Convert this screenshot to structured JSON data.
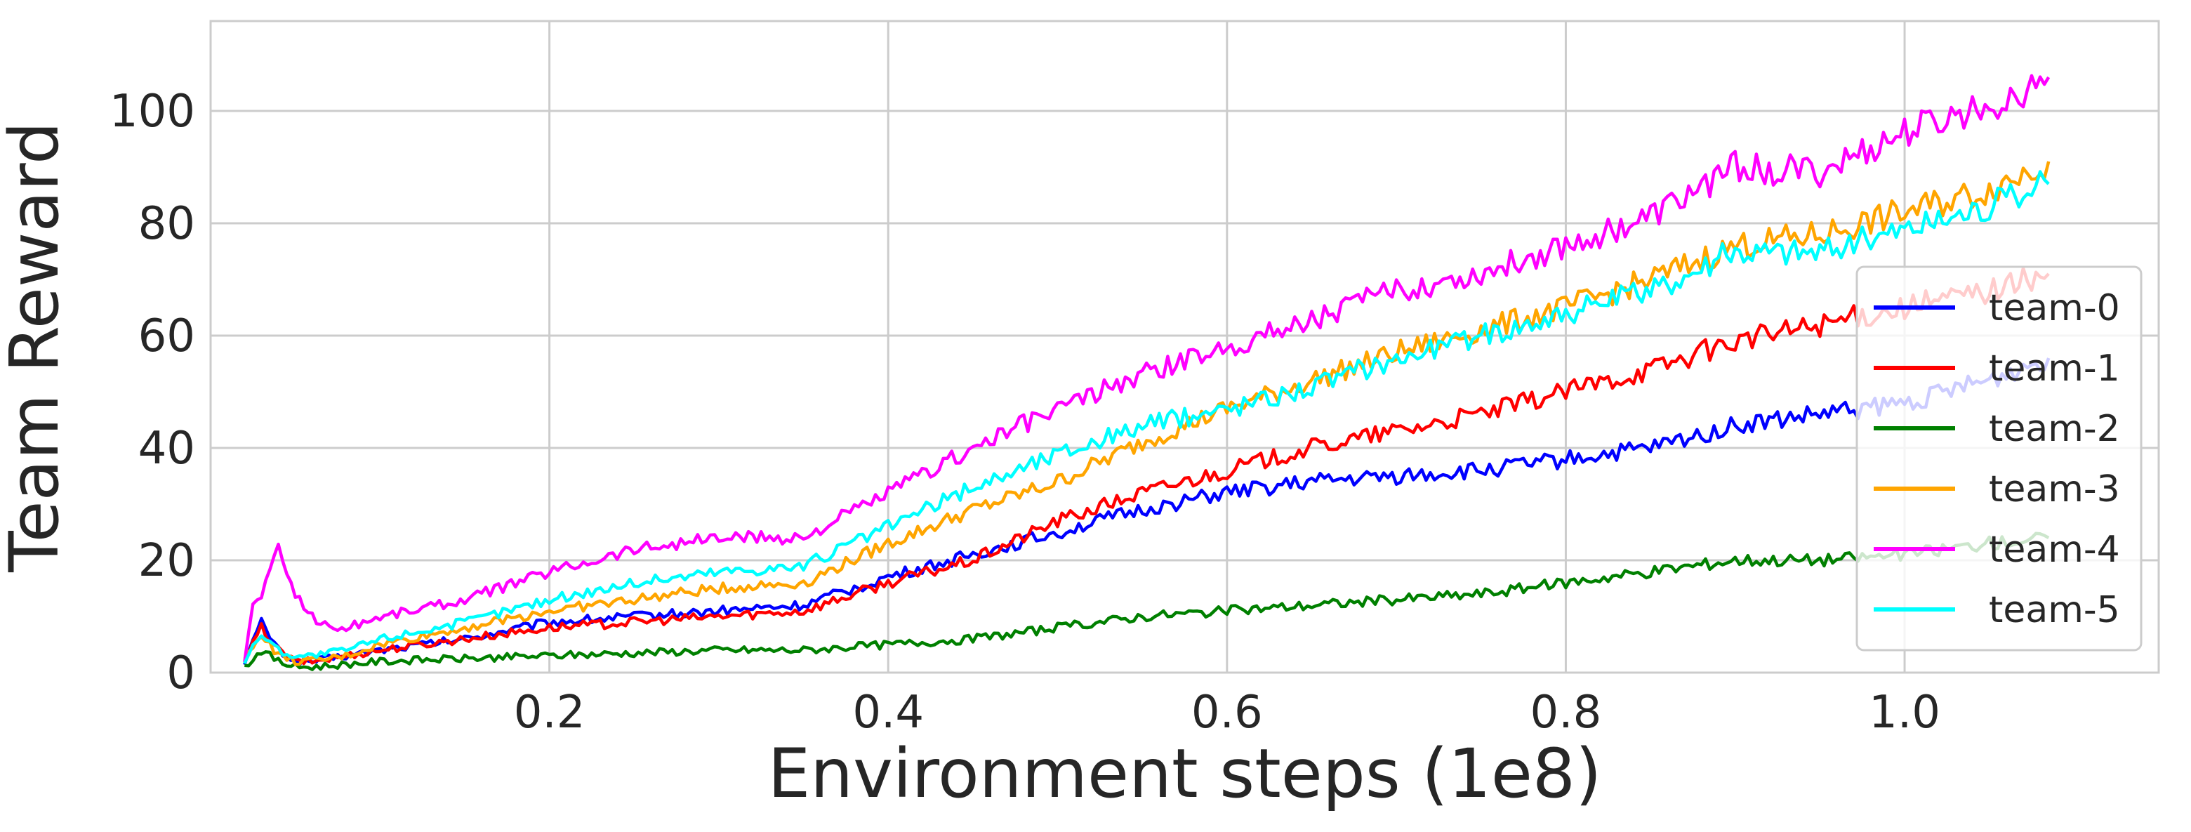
{
  "chart_data": {
    "type": "line",
    "xlabel": "Environment steps (1e8)",
    "ylabel": "Team Reward",
    "xlim": [
      0.0,
      1.15
    ],
    "ylim": [
      0,
      116
    ],
    "xticks": [
      0.2,
      0.4,
      0.6,
      0.8,
      1.0
    ],
    "xtick_labels": [
      "0.2",
      "0.4",
      "0.6",
      "0.8",
      "1.0"
    ],
    "yticks": [
      0,
      20,
      40,
      60,
      80,
      100
    ],
    "ytick_labels": [
      "0",
      "20",
      "40",
      "60",
      "80",
      "100"
    ],
    "grid": true,
    "legend_position": "right",
    "series": [
      {
        "name": "team-0",
        "color": "#0000ff",
        "x": [
          0.02,
          0.03,
          0.04,
          0.05,
          0.06,
          0.08,
          0.1,
          0.15,
          0.2,
          0.25,
          0.3,
          0.35,
          0.4,
          0.45,
          0.5,
          0.55,
          0.6,
          0.65,
          0.7,
          0.75,
          0.8,
          0.85,
          0.9,
          0.95,
          1.0,
          1.05,
          1.085
        ],
        "y": [
          2,
          9,
          4,
          2,
          2,
          3,
          4,
          6,
          9,
          10,
          11,
          12,
          17,
          21,
          25,
          29,
          32,
          34,
          35,
          36,
          38,
          40,
          44,
          46,
          48,
          52,
          56
        ]
      },
      {
        "name": "team-1",
        "color": "#ff0000",
        "x": [
          0.02,
          0.03,
          0.04,
          0.05,
          0.06,
          0.08,
          0.1,
          0.15,
          0.2,
          0.25,
          0.3,
          0.35,
          0.4,
          0.45,
          0.5,
          0.55,
          0.6,
          0.65,
          0.7,
          0.75,
          0.8,
          0.85,
          0.9,
          0.95,
          1.0,
          1.05,
          1.085
        ],
        "y": [
          2,
          8,
          4,
          2,
          2,
          3,
          4,
          6,
          8,
          9,
          10,
          11,
          16,
          20,
          27,
          32,
          36,
          40,
          43,
          46,
          50,
          54,
          59,
          62,
          65,
          68,
          71
        ]
      },
      {
        "name": "team-2",
        "color": "#008000",
        "x": [
          0.02,
          0.03,
          0.04,
          0.05,
          0.06,
          0.08,
          0.1,
          0.15,
          0.2,
          0.25,
          0.3,
          0.35,
          0.4,
          0.45,
          0.5,
          0.55,
          0.6,
          0.65,
          0.7,
          0.75,
          0.8,
          0.85,
          0.9,
          0.95,
          1.0,
          1.05,
          1.085
        ],
        "y": [
          1,
          4,
          2,
          1,
          1,
          1.5,
          2,
          2.5,
          3,
          3.5,
          4,
          4,
          5,
          6,
          8,
          10,
          11,
          12,
          13,
          14,
          16,
          18,
          20,
          20,
          21,
          23,
          24
        ]
      },
      {
        "name": "team-3",
        "color": "#ffa500",
        "x": [
          0.02,
          0.03,
          0.04,
          0.05,
          0.06,
          0.08,
          0.1,
          0.15,
          0.2,
          0.25,
          0.3,
          0.35,
          0.4,
          0.45,
          0.5,
          0.55,
          0.6,
          0.65,
          0.7,
          0.75,
          0.8,
          0.85,
          0.9,
          0.95,
          1.0,
          1.05,
          1.085
        ],
        "y": [
          2,
          7,
          3,
          2,
          2,
          3,
          5,
          8,
          11,
          13,
          15,
          16,
          23,
          29,
          34,
          41,
          47,
          52,
          57,
          61,
          65,
          70,
          76,
          78,
          82,
          86,
          91
        ]
      },
      {
        "name": "team-4",
        "color": "#ff00ff",
        "x": [
          0.02,
          0.025,
          0.03,
          0.04,
          0.05,
          0.06,
          0.07,
          0.08,
          0.1,
          0.15,
          0.2,
          0.25,
          0.3,
          0.35,
          0.4,
          0.45,
          0.5,
          0.55,
          0.6,
          0.65,
          0.7,
          0.75,
          0.8,
          0.85,
          0.9,
          0.95,
          1.0,
          1.05,
          1.085
        ],
        "y": [
          2,
          12,
          14,
          22,
          14,
          10,
          8,
          8,
          10,
          13,
          18,
          22,
          24,
          24,
          32,
          40,
          47,
          53,
          58,
          63,
          68,
          71,
          76,
          81,
          90,
          89,
          96,
          101,
          106
        ]
      },
      {
        "name": "team-5",
        "color": "#00ffff",
        "x": [
          0.02,
          0.03,
          0.04,
          0.05,
          0.06,
          0.08,
          0.1,
          0.15,
          0.2,
          0.25,
          0.3,
          0.35,
          0.4,
          0.45,
          0.5,
          0.55,
          0.6,
          0.65,
          0.7,
          0.75,
          0.8,
          0.85,
          0.9,
          0.95,
          1.0,
          1.05,
          1.085
        ],
        "y": [
          2,
          7,
          4,
          3,
          3,
          4,
          6,
          9,
          13,
          16,
          18,
          19,
          26,
          33,
          39,
          44,
          47,
          51,
          56,
          60,
          64,
          68,
          75,
          75,
          79,
          83,
          87
        ]
      }
    ]
  }
}
